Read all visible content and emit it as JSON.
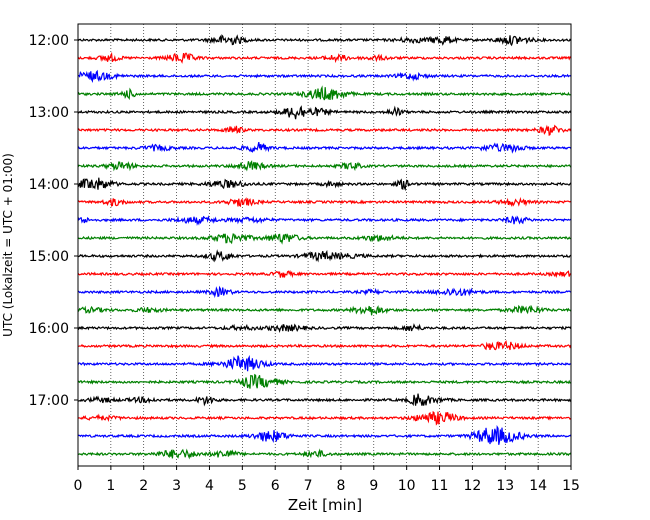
{
  "chart_data": {
    "type": "line",
    "title": "",
    "xlabel": "Zeit  [min]",
    "ylabel": "UTC (Lokalzeit = UTC + 01:00)",
    "xlim": [
      0,
      15
    ],
    "x_ticks": [
      "0",
      "1",
      "2",
      "3",
      "4",
      "5",
      "6",
      "7",
      "8",
      "9",
      "10",
      "11",
      "12",
      "13",
      "14",
      "15"
    ],
    "hour_labels": [
      "12:00",
      "13:00",
      "14:00",
      "15:00",
      "16:00",
      "17:00"
    ],
    "traces_per_hour": 4,
    "trace_count": 24,
    "trace_colors": [
      "#000000",
      "#ff0000",
      "#0000ff",
      "#008000"
    ],
    "vertical_grid": "dotted",
    "legend": "none"
  }
}
